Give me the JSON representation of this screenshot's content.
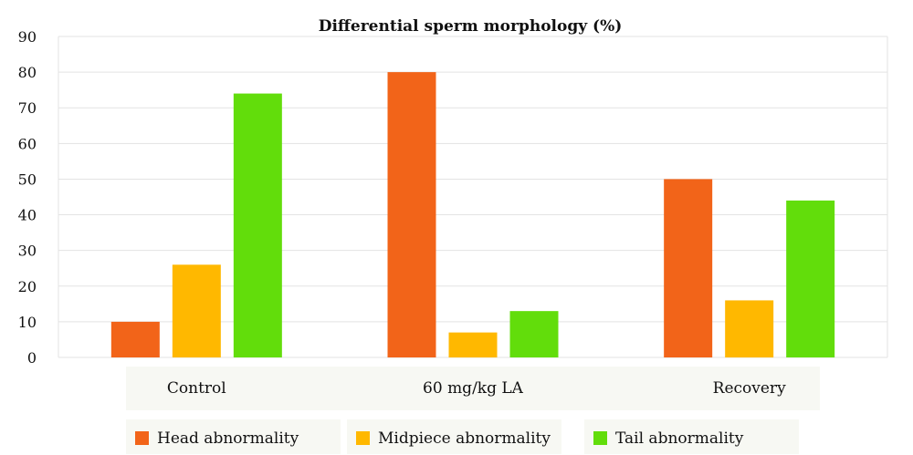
{
  "chart_data": {
    "type": "bar",
    "title": "Differential sperm morphology (%)",
    "categories": [
      "Control",
      "60 mg/kg LA",
      "Recovery"
    ],
    "series": [
      {
        "name": "Head abnormality",
        "values": [
          10,
          80,
          50
        ],
        "color": "#f26419"
      },
      {
        "name": "Midpiece abnormality",
        "values": [
          26,
          7,
          16
        ],
        "color": "#ffb800"
      },
      {
        "name": "Tail abnormality",
        "values": [
          74,
          13,
          44
        ],
        "color": "#62dd0b"
      }
    ],
    "yticks": [
      0,
      10,
      20,
      30,
      40,
      50,
      60,
      70,
      80,
      90
    ],
    "ylim": [
      0,
      90
    ],
    "grid": true,
    "legend_position": "bottom"
  }
}
